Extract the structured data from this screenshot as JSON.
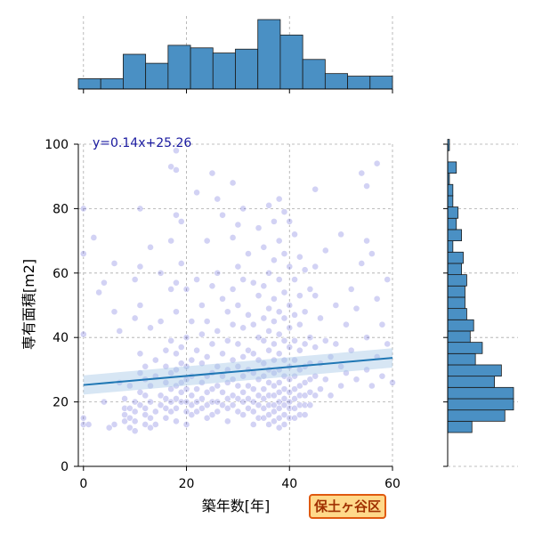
{
  "badge": {
    "label": "保土ヶ谷区"
  },
  "chart_data": {
    "type": "scatter",
    "xlabel": "築年数[年]",
    "ylabel": "専有面積[m2]",
    "xlim": [
      -1,
      60
    ],
    "ylim": [
      0,
      100
    ],
    "x_ticks": [
      0,
      20,
      40,
      60
    ],
    "y_ticks": [
      0,
      20,
      40,
      60,
      80,
      100
    ],
    "grid": true,
    "point_color": "#3333cc",
    "regression": {
      "label": "y=0.14x+25.26",
      "slope": 0.14,
      "intercept": 25.26,
      "color": "#1f77b4",
      "band_color": "#a6c8e6"
    },
    "points": [
      [
        0,
        15
      ],
      [
        0,
        13
      ],
      [
        1,
        13
      ],
      [
        0,
        66
      ],
      [
        0,
        41
      ],
      [
        0,
        80
      ],
      [
        2,
        71
      ],
      [
        3,
        54
      ],
      [
        4,
        57
      ],
      [
        6,
        63
      ],
      [
        6,
        48
      ],
      [
        7,
        42
      ],
      [
        7,
        26
      ],
      [
        6,
        13
      ],
      [
        5,
        12
      ],
      [
        4,
        20
      ],
      [
        8,
        18
      ],
      [
        8,
        16
      ],
      [
        8,
        14
      ],
      [
        8,
        21
      ],
      [
        9,
        18
      ],
      [
        9,
        15
      ],
      [
        9,
        12
      ],
      [
        9,
        25
      ],
      [
        10,
        20
      ],
      [
        10,
        17
      ],
      [
        10,
        14
      ],
      [
        10,
        11
      ],
      [
        10,
        58
      ],
      [
        10,
        46
      ],
      [
        11,
        80
      ],
      [
        11,
        62
      ],
      [
        11,
        50
      ],
      [
        11,
        35
      ],
      [
        11,
        29
      ],
      [
        11,
        23
      ],
      [
        11,
        19
      ],
      [
        12,
        16
      ],
      [
        12,
        13
      ],
      [
        12,
        31
      ],
      [
        12,
        27
      ],
      [
        12,
        22
      ],
      [
        12,
        18
      ],
      [
        13,
        12
      ],
      [
        13,
        15
      ],
      [
        13,
        68
      ],
      [
        13,
        43
      ],
      [
        13,
        25
      ],
      [
        13,
        20
      ],
      [
        14,
        17
      ],
      [
        14,
        13
      ],
      [
        14,
        33
      ],
      [
        14,
        28
      ],
      [
        15,
        22
      ],
      [
        15,
        19
      ],
      [
        15,
        60
      ],
      [
        15,
        45
      ],
      [
        16,
        36
      ],
      [
        16,
        31
      ],
      [
        16,
        26
      ],
      [
        16,
        21
      ],
      [
        16,
        18
      ],
      [
        16,
        15
      ],
      [
        17,
        93
      ],
      [
        17,
        70
      ],
      [
        17,
        55
      ],
      [
        17,
        39
      ],
      [
        17,
        29
      ],
      [
        17,
        24
      ],
      [
        17,
        20
      ],
      [
        17,
        17
      ],
      [
        18,
        98
      ],
      [
        18,
        92
      ],
      [
        18,
        78
      ],
      [
        18,
        57
      ],
      [
        18,
        48
      ],
      [
        18,
        35
      ],
      [
        18,
        30
      ],
      [
        18,
        25
      ],
      [
        18,
        21
      ],
      [
        18,
        18
      ],
      [
        18,
        14
      ],
      [
        19,
        20
      ],
      [
        19,
        23
      ],
      [
        19,
        26
      ],
      [
        19,
        32
      ],
      [
        19,
        37
      ],
      [
        19,
        63
      ],
      [
        19,
        76
      ],
      [
        20,
        55
      ],
      [
        20,
        40
      ],
      [
        20,
        31
      ],
      [
        20,
        27
      ],
      [
        20,
        24
      ],
      [
        20,
        20
      ],
      [
        20,
        17
      ],
      [
        20,
        13
      ],
      [
        21,
        45
      ],
      [
        21,
        33
      ],
      [
        21,
        28
      ],
      [
        21,
        22
      ],
      [
        21,
        19
      ],
      [
        21,
        16
      ],
      [
        22,
        85
      ],
      [
        22,
        58
      ],
      [
        22,
        36
      ],
      [
        22,
        24
      ],
      [
        22,
        20
      ],
      [
        22,
        17
      ],
      [
        23,
        50
      ],
      [
        23,
        41
      ],
      [
        23,
        32
      ],
      [
        23,
        26
      ],
      [
        23,
        21
      ],
      [
        23,
        18
      ],
      [
        24,
        70
      ],
      [
        24,
        45
      ],
      [
        24,
        34
      ],
      [
        24,
        28
      ],
      [
        24,
        23
      ],
      [
        24,
        19
      ],
      [
        24,
        15
      ],
      [
        25,
        91
      ],
      [
        25,
        56
      ],
      [
        25,
        38
      ],
      [
        25,
        29
      ],
      [
        25,
        24
      ],
      [
        25,
        20
      ],
      [
        25,
        16
      ],
      [
        26,
        83
      ],
      [
        26,
        60
      ],
      [
        26,
        42
      ],
      [
        26,
        31
      ],
      [
        26,
        25
      ],
      [
        26,
        20
      ],
      [
        26,
        17
      ],
      [
        27,
        78
      ],
      [
        27,
        52
      ],
      [
        27,
        35
      ],
      [
        27,
        28
      ],
      [
        27,
        23
      ],
      [
        27,
        19
      ],
      [
        28,
        48
      ],
      [
        28,
        39
      ],
      [
        28,
        30
      ],
      [
        28,
        26
      ],
      [
        28,
        21
      ],
      [
        28,
        18
      ],
      [
        28,
        14
      ],
      [
        29,
        88
      ],
      [
        29,
        71
      ],
      [
        29,
        55
      ],
      [
        29,
        44
      ],
      [
        29,
        33
      ],
      [
        29,
        27
      ],
      [
        29,
        22
      ],
      [
        29,
        19
      ],
      [
        30,
        75
      ],
      [
        30,
        62
      ],
      [
        30,
        50
      ],
      [
        30,
        38
      ],
      [
        30,
        31
      ],
      [
        30,
        25
      ],
      [
        30,
        21
      ],
      [
        30,
        17
      ],
      [
        31,
        80
      ],
      [
        31,
        58
      ],
      [
        31,
        43
      ],
      [
        31,
        34
      ],
      [
        31,
        28
      ],
      [
        31,
        23
      ],
      [
        31,
        20
      ],
      [
        31,
        16
      ],
      [
        32,
        66
      ],
      [
        32,
        47
      ],
      [
        32,
        36
      ],
      [
        32,
        30
      ],
      [
        32,
        25
      ],
      [
        32,
        21
      ],
      [
        32,
        18
      ],
      [
        33,
        57
      ],
      [
        33,
        44
      ],
      [
        33,
        35
      ],
      [
        33,
        29
      ],
      [
        33,
        24
      ],
      [
        33,
        20
      ],
      [
        33,
        17
      ],
      [
        33,
        13
      ],
      [
        34,
        74
      ],
      [
        34,
        53
      ],
      [
        34,
        40
      ],
      [
        34,
        33
      ],
      [
        34,
        27
      ],
      [
        34,
        22
      ],
      [
        34,
        19
      ],
      [
        34,
        15
      ],
      [
        35,
        68
      ],
      [
        35,
        56
      ],
      [
        35,
        46
      ],
      [
        35,
        39
      ],
      [
        35,
        32
      ],
      [
        35,
        28
      ],
      [
        35,
        24
      ],
      [
        35,
        21
      ],
      [
        35,
        18
      ],
      [
        35,
        15
      ],
      [
        36,
        81
      ],
      [
        36,
        60
      ],
      [
        36,
        49
      ],
      [
        36,
        42
      ],
      [
        36,
        36
      ],
      [
        36,
        30
      ],
      [
        36,
        26
      ],
      [
        36,
        22
      ],
      [
        36,
        19
      ],
      [
        36,
        16
      ],
      [
        36,
        13
      ],
      [
        37,
        76
      ],
      [
        37,
        64
      ],
      [
        37,
        52
      ],
      [
        37,
        45
      ],
      [
        37,
        38
      ],
      [
        37,
        33
      ],
      [
        37,
        29
      ],
      [
        37,
        25
      ],
      [
        37,
        22
      ],
      [
        37,
        19
      ],
      [
        37,
        17
      ],
      [
        37,
        14
      ],
      [
        38,
        83
      ],
      [
        38,
        70
      ],
      [
        38,
        58
      ],
      [
        38,
        48
      ],
      [
        38,
        41
      ],
      [
        38,
        35
      ],
      [
        38,
        30
      ],
      [
        38,
        26
      ],
      [
        38,
        23
      ],
      [
        38,
        20
      ],
      [
        38,
        18
      ],
      [
        38,
        15
      ],
      [
        38,
        12
      ],
      [
        39,
        79
      ],
      [
        39,
        66
      ],
      [
        39,
        54
      ],
      [
        39,
        46
      ],
      [
        39,
        39
      ],
      [
        39,
        33
      ],
      [
        39,
        28
      ],
      [
        39,
        24
      ],
      [
        39,
        21
      ],
      [
        39,
        19
      ],
      [
        39,
        16
      ],
      [
        39,
        13
      ],
      [
        40,
        76
      ],
      [
        40,
        62
      ],
      [
        40,
        50
      ],
      [
        40,
        43
      ],
      [
        40,
        37
      ],
      [
        40,
        31
      ],
      [
        40,
        27
      ],
      [
        40,
        23
      ],
      [
        40,
        20
      ],
      [
        40,
        18
      ],
      [
        40,
        15
      ],
      [
        41,
        72
      ],
      [
        41,
        58
      ],
      [
        41,
        47
      ],
      [
        41,
        39
      ],
      [
        41,
        33
      ],
      [
        41,
        28
      ],
      [
        41,
        24
      ],
      [
        41,
        21
      ],
      [
        41,
        18
      ],
      [
        41,
        15
      ],
      [
        42,
        65
      ],
      [
        42,
        53
      ],
      [
        42,
        44
      ],
      [
        42,
        36
      ],
      [
        42,
        30
      ],
      [
        42,
        25
      ],
      [
        42,
        22
      ],
      [
        42,
        19
      ],
      [
        42,
        16
      ],
      [
        43,
        61
      ],
      [
        43,
        48
      ],
      [
        43,
        38
      ],
      [
        43,
        31
      ],
      [
        43,
        26
      ],
      [
        43,
        22
      ],
      [
        43,
        19
      ],
      [
        43,
        16
      ],
      [
        44,
        55
      ],
      [
        44,
        40
      ],
      [
        44,
        32
      ],
      [
        44,
        27
      ],
      [
        44,
        23
      ],
      [
        44,
        19
      ],
      [
        45,
        86
      ],
      [
        45,
        62
      ],
      [
        45,
        53
      ],
      [
        45,
        37
      ],
      [
        45,
        28
      ],
      [
        45,
        22
      ],
      [
        46,
        46
      ],
      [
        46,
        32
      ],
      [
        46,
        24
      ],
      [
        47,
        67
      ],
      [
        47,
        39
      ],
      [
        47,
        27
      ],
      [
        48,
        34
      ],
      [
        48,
        22
      ],
      [
        49,
        50
      ],
      [
        49,
        38
      ],
      [
        50,
        72
      ],
      [
        50,
        31
      ],
      [
        50,
        25
      ],
      [
        51,
        44
      ],
      [
        51,
        29
      ],
      [
        52,
        55
      ],
      [
        52,
        36
      ],
      [
        53,
        49
      ],
      [
        53,
        27
      ],
      [
        54,
        91
      ],
      [
        54,
        63
      ],
      [
        55,
        87
      ],
      [
        55,
        70
      ],
      [
        55,
        40
      ],
      [
        55,
        30
      ],
      [
        56,
        66
      ],
      [
        56,
        25
      ],
      [
        57,
        94
      ],
      [
        57,
        52
      ],
      [
        57,
        34
      ],
      [
        58,
        44
      ],
      [
        58,
        28
      ],
      [
        59,
        58
      ],
      [
        59,
        38
      ],
      [
        60,
        26
      ]
    ]
  }
}
